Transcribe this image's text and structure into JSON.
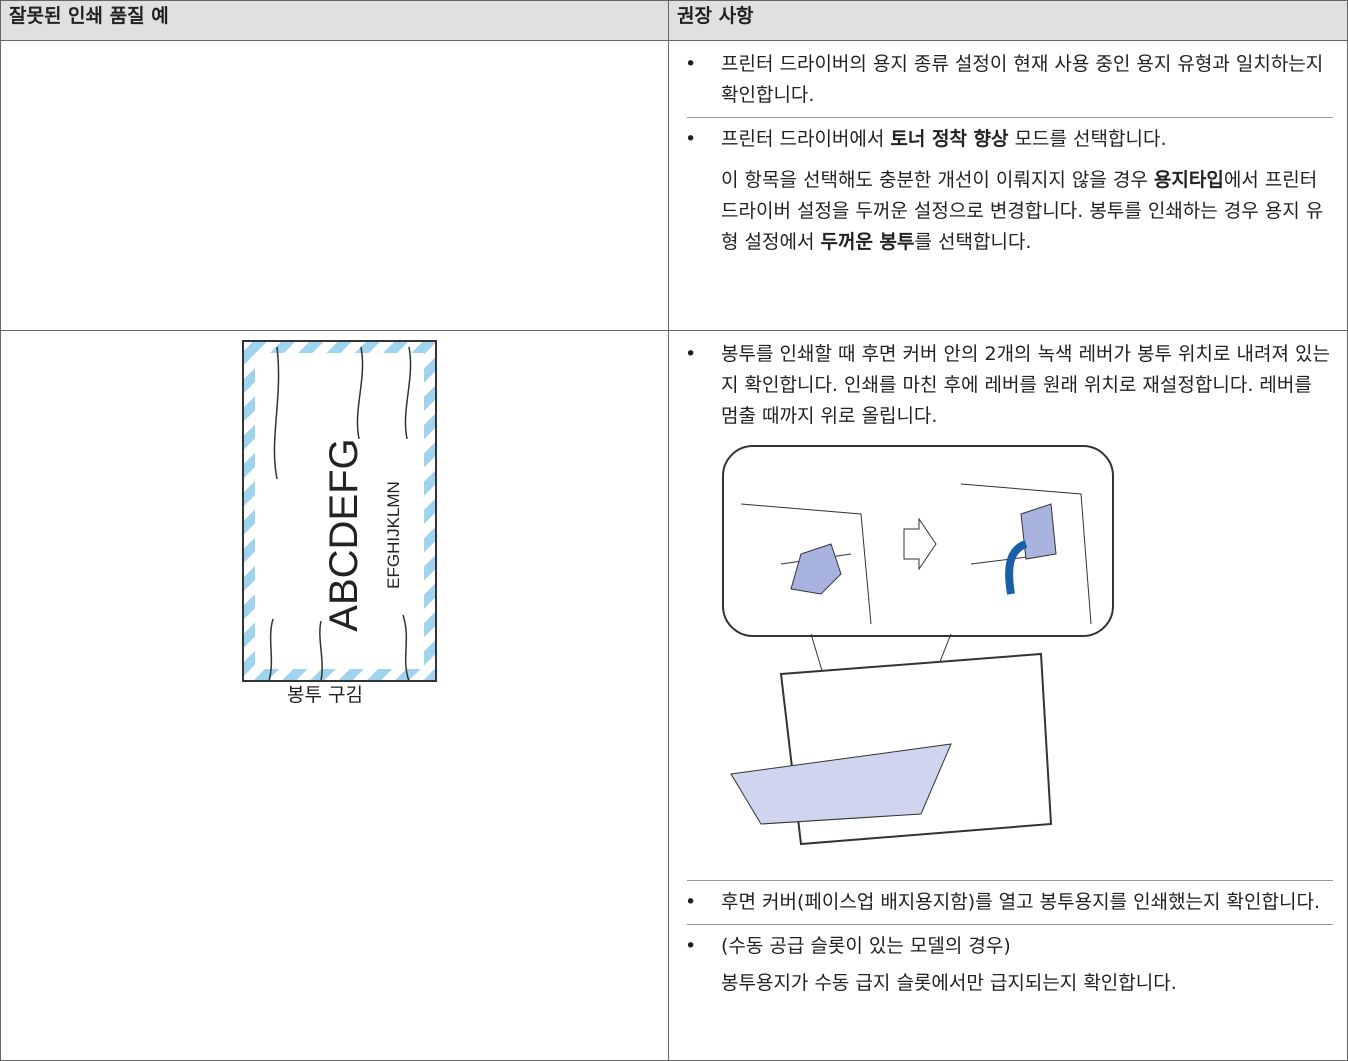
{
  "header": {
    "col1": "잘못된 인쇄 품질 예",
    "col2": "권장 사항"
  },
  "rows": [
    {
      "items": [
        {
          "parts": [
            "프린터 드라이버의 용지 종류 설정이 현재 사용 중인 용지 유형과 일치하는지 확인합니다."
          ]
        },
        {
          "parts": [
            "프린터 드라이버에서 ",
            "토너 정착 향상",
            " 모드를 선택합니다."
          ]
        },
        {
          "parts": [
            "이 항목을 선택해도 충분한 개선이 이뤄지지 않을 경우 ",
            "용지타입",
            "에서 프린터 드라이버 설정을 두꺼운 설정으로 변경합니다. 봉투를 인쇄하는 경우 용지 유형 설정에서 ",
            "두꺼운 봉투",
            "를 선택합니다."
          ]
        }
      ]
    },
    {
      "example": {
        "text_large": "ABCDEFG",
        "text_small": "EFGHIJKLMN",
        "caption": "봉투 구김"
      },
      "items": [
        {
          "parts": [
            "봉투를 인쇄할 때 후면 커버 안의 2개의 녹색 레버가 봉투 위치로 내려져 있는지 확인합니다. 인쇄를 마친 후에 레버를 원래 위치로 재설정합니다. 레버를 멈출 때까지 위로 올립니다."
          ]
        },
        {
          "parts": [
            "후면 커버(페이스업 배지용지함)를 열고 봉투용지를 인쇄했는지 확인합니다."
          ]
        },
        {
          "parts": [
            "(수동 공급 슬롯이 있는 모델의 경우)"
          ]
        },
        {
          "parts": [
            "봉투용지가 수동 급지 슬롯에서만 급지되는지 확인합니다."
          ]
        }
      ]
    }
  ]
}
